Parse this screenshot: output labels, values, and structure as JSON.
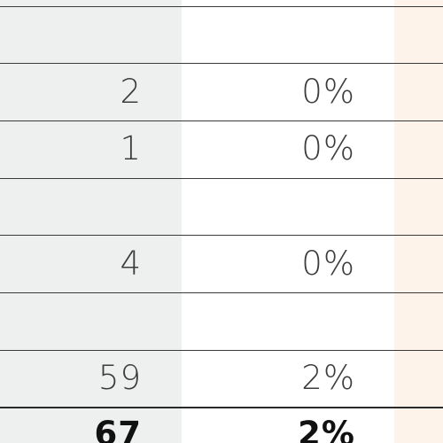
{
  "table": {
    "rows": [
      {
        "count": "",
        "percent": ""
      },
      {
        "count": "2",
        "percent": "0%"
      },
      {
        "count": "1",
        "percent": "0%"
      },
      {
        "count": "",
        "percent": ""
      },
      {
        "count": "4",
        "percent": "0%"
      },
      {
        "count": "",
        "percent": ""
      },
      {
        "count": "59",
        "percent": "2%"
      }
    ],
    "total": {
      "count": "67",
      "percent": "2%"
    }
  },
  "colors": {
    "count_column_bg": "#edf0ef",
    "percent_column_bg": "#ffffff",
    "third_column_bg": "#fdf3ea",
    "rule": "#3a3a3a"
  }
}
